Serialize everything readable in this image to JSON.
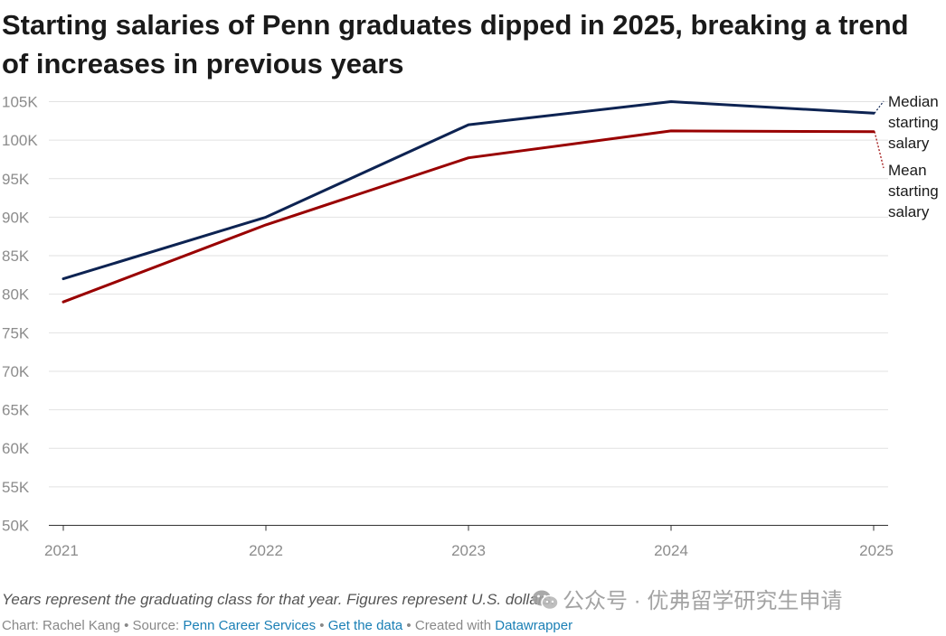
{
  "chart_data": {
    "type": "line",
    "title": "Starting salaries of Penn graduates dipped in 2025, breaking a trend of increases in previous years",
    "x": [
      "2021",
      "2022",
      "2023",
      "2024",
      "2025"
    ],
    "ylim": [
      50000,
      105000
    ],
    "yticks": [
      {
        "value": 105000,
        "label": "105K"
      },
      {
        "value": 100000,
        "label": "100K"
      },
      {
        "value": 95000,
        "label": "95K"
      },
      {
        "value": 90000,
        "label": "90K"
      },
      {
        "value": 85000,
        "label": "85K"
      },
      {
        "value": 80000,
        "label": "80K"
      },
      {
        "value": 75000,
        "label": "75K"
      },
      {
        "value": 70000,
        "label": "70K"
      },
      {
        "value": 65000,
        "label": "65K"
      },
      {
        "value": 60000,
        "label": "60K"
      },
      {
        "value": 55000,
        "label": "55K"
      },
      {
        "value": 50000,
        "label": "50K"
      }
    ],
    "grid": true,
    "series": [
      {
        "name": "Median starting salary",
        "label_lines": [
          "Median",
          "starting",
          "salary"
        ],
        "color": "#0d2352",
        "values": [
          82000,
          90000,
          102000,
          105000,
          103500
        ]
      },
      {
        "name": "Mean starting salary",
        "label_lines": [
          "Mean",
          "starting",
          "salary"
        ],
        "color": "#990000",
        "values": [
          79000,
          89000,
          97700,
          101200,
          101100
        ]
      }
    ]
  },
  "notes": "Years represent the graduating class for that year. Figures represent U.S. dollars.",
  "byline": {
    "chart_prefix": "Chart: Rachel Kang",
    "separator": " • ",
    "source_prefix": "Source: ",
    "source_link": "Penn Career Services",
    "data_link": "Get the data",
    "created_prefix": "Created with ",
    "created_link": "Datawrapper"
  },
  "watermark": {
    "text": "公众号 · 优弗留学研究生申请",
    "icon": "wechat-icon"
  }
}
